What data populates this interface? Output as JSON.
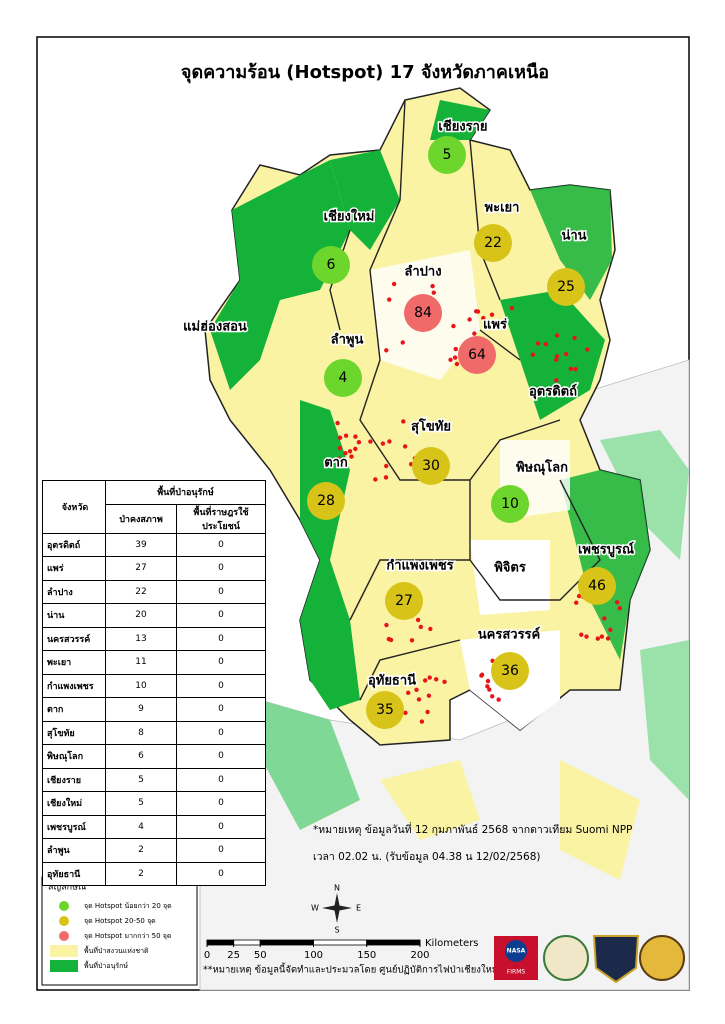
{
  "title": "จุดความร้อน (Hotspot) 17 จังหวัดภาคเหนือ",
  "provinces": [
    {
      "name": "เชียงราย",
      "count": 5,
      "color": "#6dd62c"
    },
    {
      "name": "พะเยา",
      "count": 22,
      "color": "#d8c418"
    },
    {
      "name": "น่าน",
      "count": 25,
      "color": "#d8c418"
    },
    {
      "name": "เชียงใหม่",
      "count": 6,
      "color": "#6dd62c"
    },
    {
      "name": "ลำปาง",
      "count": 84,
      "color": "#f06a6a"
    },
    {
      "name": "แม่ฮ่องสอน"
    },
    {
      "name": "แพร่",
      "count": 64,
      "color": "#f06a6a"
    },
    {
      "name": "ลำพูน",
      "count": 4,
      "color": "#6dd62c"
    },
    {
      "name": "อุตรดิตถ์"
    },
    {
      "name": "สุโขทัย",
      "count": 30,
      "color": "#d8c418"
    },
    {
      "name": "ตาก",
      "count": 28,
      "color": "#d8c418"
    },
    {
      "name": "พิษณุโลก",
      "count": 10,
      "color": "#6dd62c"
    },
    {
      "name": "เพชรบูรณ์",
      "count": 46,
      "color": "#d8c418"
    },
    {
      "name": "กำแพงเพชร",
      "count": 27,
      "color": "#d8c418"
    },
    {
      "name": "พิจิตร"
    },
    {
      "name": "นครสวรรค์",
      "count": 36,
      "color": "#d8c418"
    },
    {
      "name": "อุทัยธานี",
      "count": 35,
      "color": "#d8c418"
    }
  ],
  "table": {
    "header": {
      "province": "จังหวัด",
      "group": "พื้นที่ป่าอนุรักษ์",
      "col1": "ป่าคงสภาพ",
      "col2": "พื้นที่ราษฎรใช้ประโยชน์"
    },
    "rows": [
      [
        "อุตรดิตถ์",
        39,
        0
      ],
      [
        "แพร่",
        27,
        0
      ],
      [
        "ลำปาง",
        22,
        0
      ],
      [
        "น่าน",
        20,
        0
      ],
      [
        "นครสวรรค์",
        13,
        0
      ],
      [
        "พะเยา",
        11,
        0
      ],
      [
        "กำแพงเพชร",
        10,
        0
      ],
      [
        "ตาก",
        9,
        0
      ],
      [
        "สุโขทัย",
        8,
        0
      ],
      [
        "พิษณุโลก",
        6,
        0
      ],
      [
        "เชียงราย",
        5,
        0
      ],
      [
        "เชียงใหม่",
        5,
        0
      ],
      [
        "เพชรบูรณ์",
        4,
        0
      ],
      [
        "ลำพูน",
        2,
        0
      ],
      [
        "อุทัยธานี",
        2,
        0
      ]
    ]
  },
  "legend": {
    "title": "สัญลักษณ์",
    "items": [
      {
        "label": "จุด Hotspot น้อยกว่า 20 จุด",
        "color": "#6dd62c",
        "shape": "circle"
      },
      {
        "label": "จุด Hotspot 20-50 จุด",
        "color": "#d8c418",
        "shape": "circle"
      },
      {
        "label": "จุด Hotspot มากกว่า 50 จุด",
        "color": "#f06a6a",
        "shape": "circle"
      },
      {
        "label": "พื้นที่ป่าสงวนแห่งชาติ",
        "color": "#fbf3a4",
        "shape": "rect"
      },
      {
        "label": "พื้นที่ป่าอนุรักษ์",
        "color": "#15b23a",
        "shape": "rect"
      }
    ]
  },
  "notes": [
    "*หมายเหตุ ข้อมูลวันที่  12 กุมภาพันธ์ 2568 จากดาวเทียม Suomi NPP",
    "เวลา 02.02 น. (รับข้อมูล 04.38 น  12/02/2568)"
  ],
  "credit": "**หมายเหตุ ข้อมูลนี้จัดทำและประมวลโดย ศูนย์ปฏิบัติการไฟป่าเชียงใหม่",
  "scale": {
    "ticks": [
      0,
      25,
      50,
      100,
      150,
      200
    ],
    "unit": "Kilometers"
  },
  "compass": {
    "n": "N",
    "e": "E",
    "s": "S",
    "w": "W"
  },
  "logos": {
    "nasa": "NASA",
    "firms": "FIRMS"
  }
}
